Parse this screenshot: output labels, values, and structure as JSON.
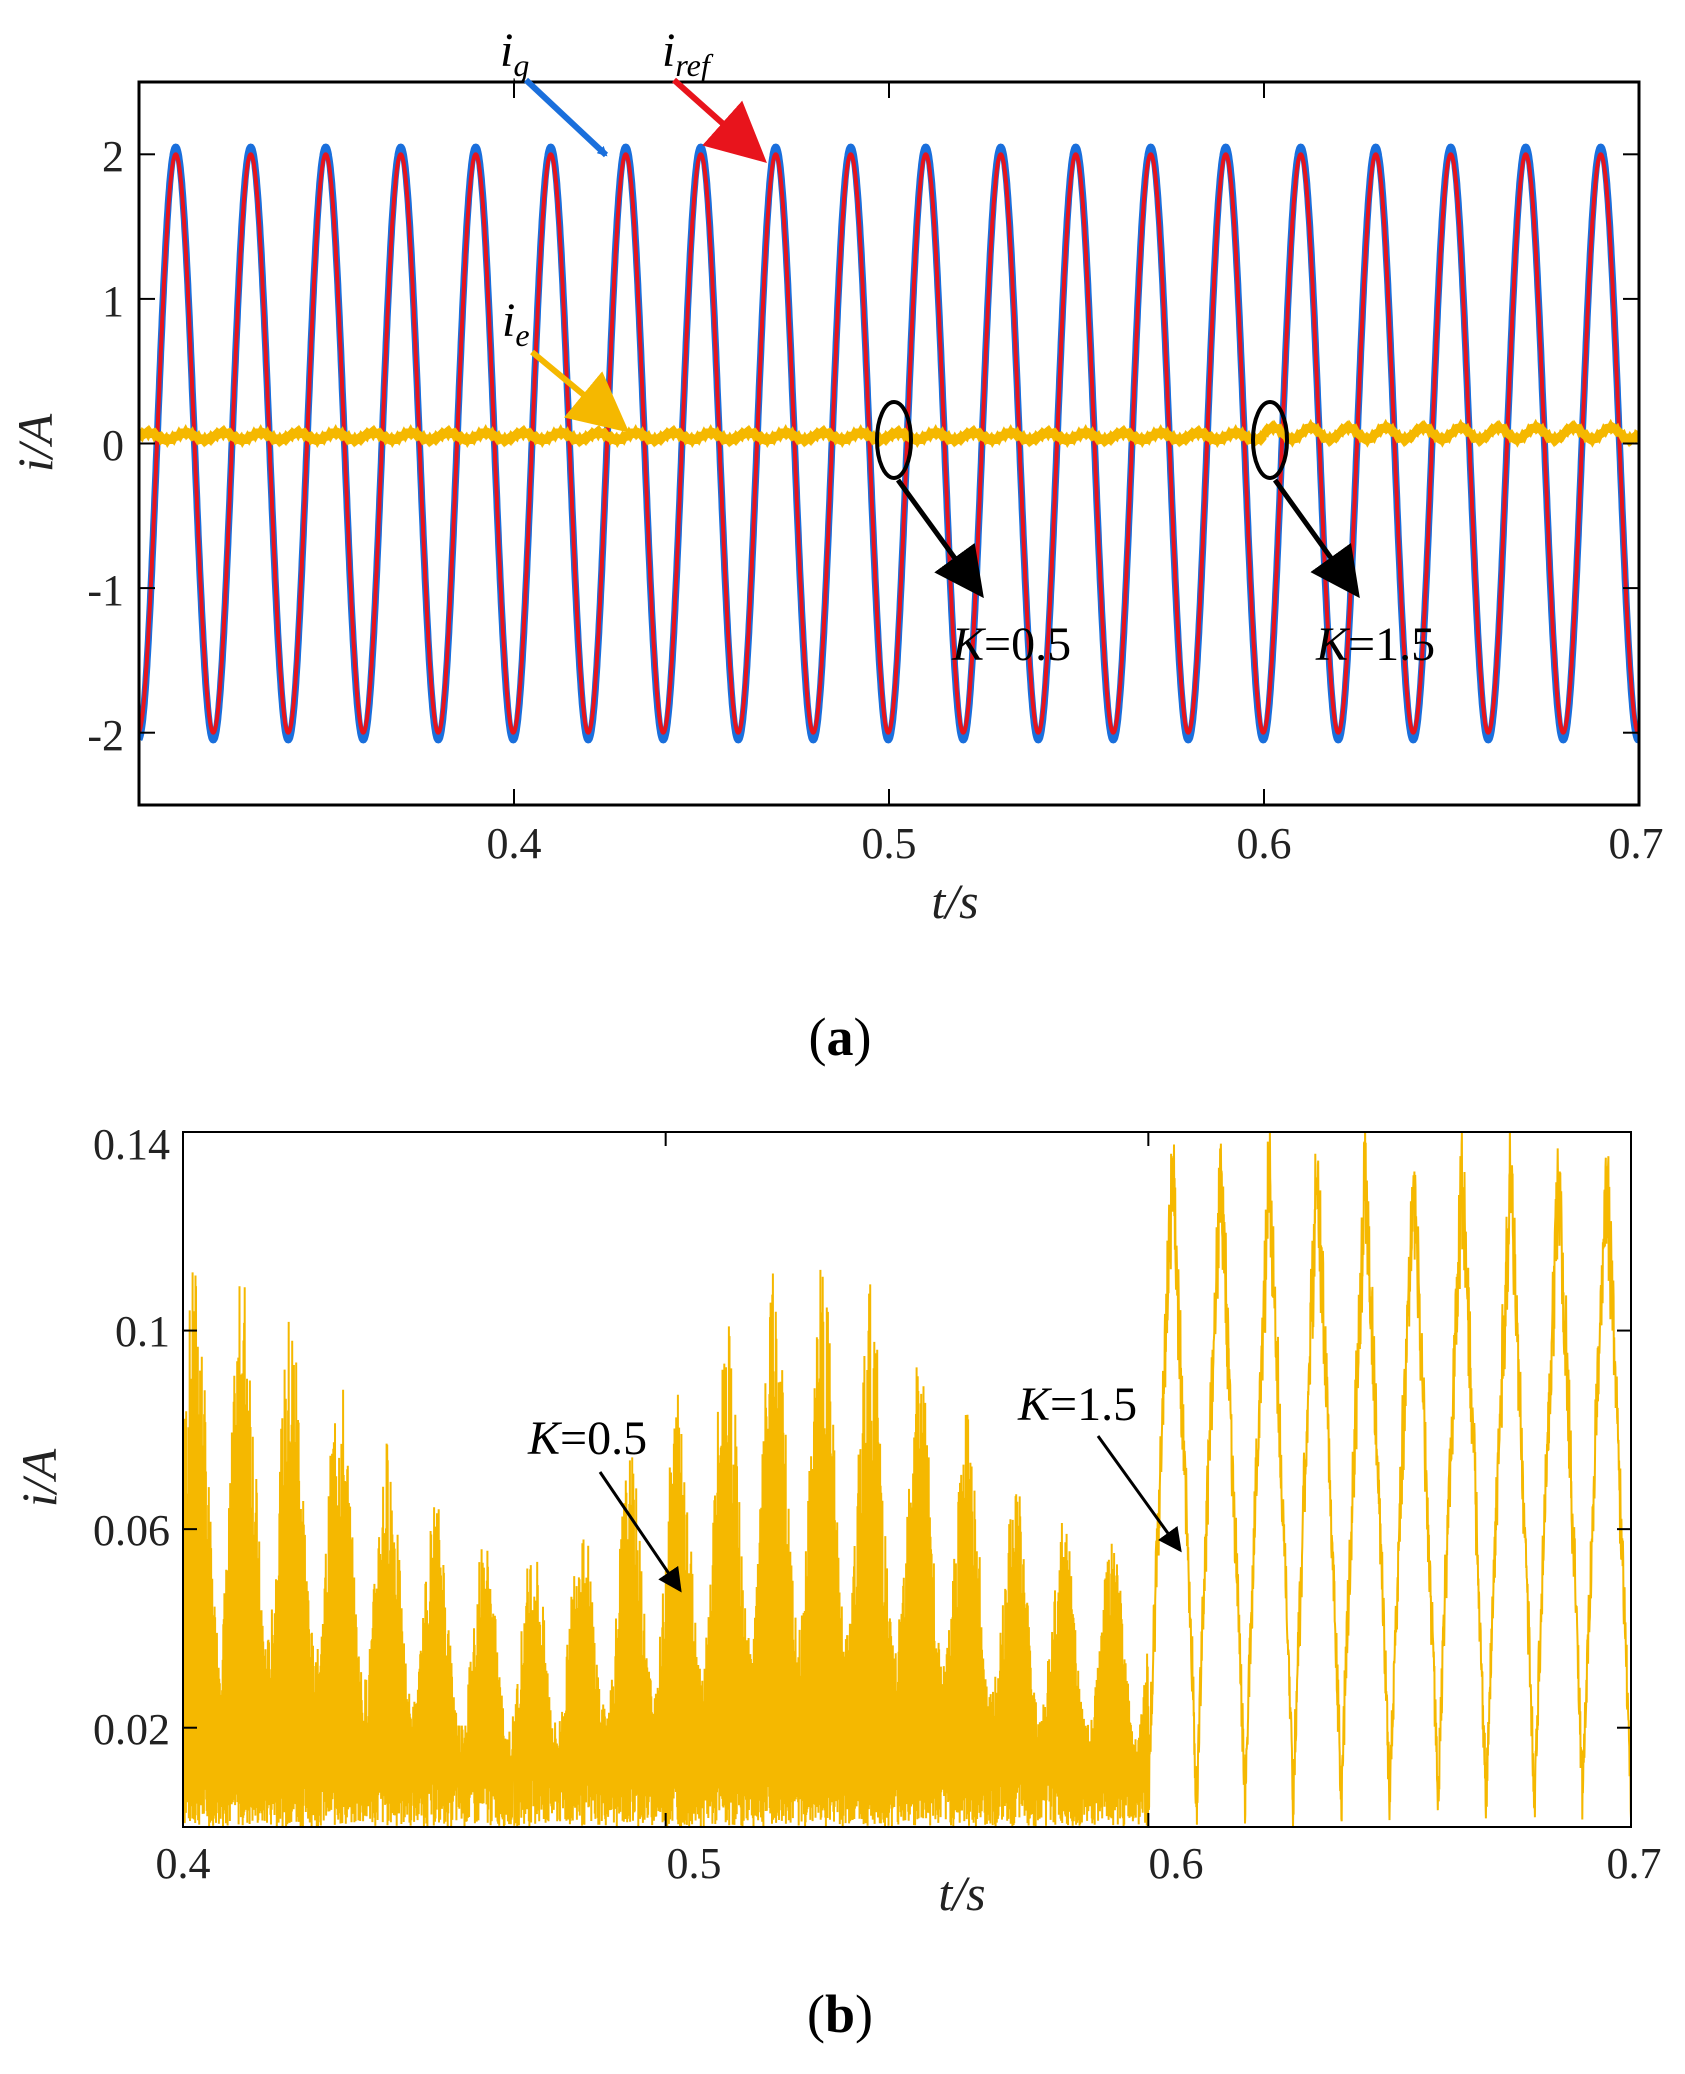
{
  "chart_data": [
    {
      "panel_label": "(a)",
      "panel_letter": "a",
      "type": "line",
      "xlabel": "t/s",
      "ylabel": "i/A",
      "xlim": [
        0.3,
        0.7
      ],
      "ylim": [
        -2.5,
        2.5
      ],
      "xticks": [
        0.4,
        0.5,
        0.6,
        0.7
      ],
      "xtick_labels": [
        "0.4",
        "0.5",
        "0.6",
        "0.7"
      ],
      "yticks": [
        -2,
        -1,
        0,
        1,
        2
      ],
      "ytick_labels": [
        "-2",
        "-1",
        "0",
        "1",
        "2"
      ],
      "series": [
        {
          "name": "i_g",
          "label_main": "i",
          "label_sub": "g",
          "color": "#1a6fdc",
          "frequency_hz": 50,
          "amplitude": 2.05
        },
        {
          "name": "i_ref",
          "label_main": "i",
          "label_sub": "ref",
          "color": "#e8141c",
          "frequency_hz": 50,
          "amplitude": 2.0
        },
        {
          "name": "i_e",
          "label_main": "i",
          "label_sub": "e",
          "color": "#f5b800",
          "offset_before_0_6": 0.05,
          "offset_after_0_6": 0.07,
          "ripple_amplitude": 0.04
        }
      ],
      "annotations": [
        {
          "text_var": "K",
          "text_value": "=0.5",
          "at_x": 0.5,
          "at_y": 0
        },
        {
          "text_var": "K",
          "text_value": "=1.5",
          "at_x": 0.6,
          "at_y": 0
        }
      ]
    },
    {
      "panel_label": "(b)",
      "panel_letter": "b",
      "type": "line",
      "xlabel": "t/s",
      "ylabel": "i/A",
      "xlim": [
        0.4,
        0.7
      ],
      "ylim": [
        0,
        0.14
      ],
      "xticks": [
        0.4,
        0.5,
        0.6,
        0.7
      ],
      "xtick_labels": [
        "0.4",
        "0.5",
        "0.6",
        "0.7"
      ],
      "yticks": [
        0.02,
        0.06,
        0.1,
        0.14
      ],
      "ytick_labels": [
        "0.02",
        "0.06",
        "0.1",
        "0.14"
      ],
      "series": [
        {
          "name": "i_e",
          "color": "#f5b800",
          "peak_before_0_6": 0.115,
          "peak_after_0_6": 0.138
        }
      ],
      "annotations": [
        {
          "text_var": "K",
          "text_value": "=0.5",
          "at_x": 0.5,
          "at_y": 0.05
        },
        {
          "text_var": "K",
          "text_value": "=1.5",
          "at_x": 0.6,
          "at_y": 0.06
        }
      ]
    }
  ]
}
